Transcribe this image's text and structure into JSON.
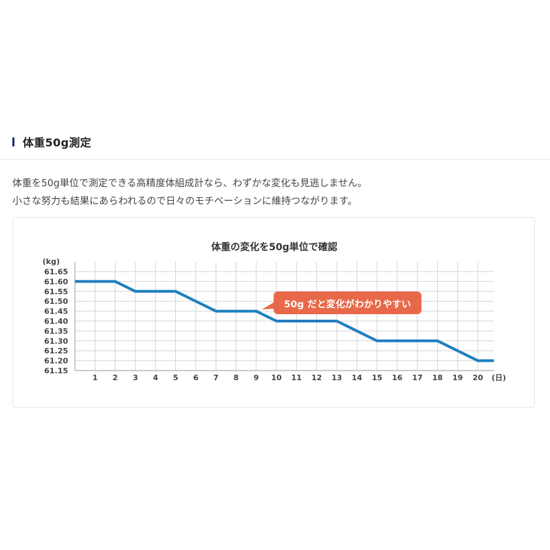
{
  "heading": {
    "title": "体重50g測定",
    "accent_color": "#1c2a78"
  },
  "description": {
    "line1": "体重を50g単位で測定できる高精度体組成計なら、わずかな変化も見逃しません。",
    "line2": "小さな努力も結果にあらわれるので日々のモチベーションに維持つながります。"
  },
  "chart": {
    "callout": "50g だと変化がわかりやすい",
    "callout_color": "#e8694a",
    "line_color": "#1f7fbf"
  },
  "chart_data": {
    "type": "line",
    "title": "体重の変化を50g単位で確認",
    "xlabel": "(日)",
    "ylabel": "(kg)",
    "x": [
      0,
      1,
      2,
      3,
      4,
      5,
      6,
      7,
      8,
      9,
      10,
      11,
      12,
      13,
      14,
      15,
      16,
      17,
      18,
      19,
      20,
      20.8
    ],
    "series": [
      {
        "name": "体重",
        "values": [
          61.6,
          61.6,
          61.6,
          61.55,
          61.55,
          61.55,
          61.5,
          61.45,
          61.45,
          61.45,
          61.4,
          61.4,
          61.4,
          61.4,
          61.35,
          61.3,
          61.3,
          61.3,
          61.3,
          61.25,
          61.2,
          61.2
        ]
      }
    ],
    "x_tick_labels": [
      "1",
      "2",
      "3",
      "4",
      "5",
      "6",
      "7",
      "8",
      "9",
      "10",
      "11",
      "12",
      "13",
      "14",
      "15",
      "16",
      "17",
      "18",
      "19",
      "20"
    ],
    "y_tick_labels": [
      "61.65",
      "61.60",
      "61.55",
      "61.50",
      "61.45",
      "61.40",
      "61.35",
      "61.30",
      "61.25",
      "61.20",
      "61.15"
    ],
    "ylim": [
      61.15,
      61.65
    ],
    "xlim": [
      0,
      20.8
    ],
    "grid": true,
    "legend": "none",
    "annotations": [
      "50g だと変化がわかりやすい"
    ]
  }
}
